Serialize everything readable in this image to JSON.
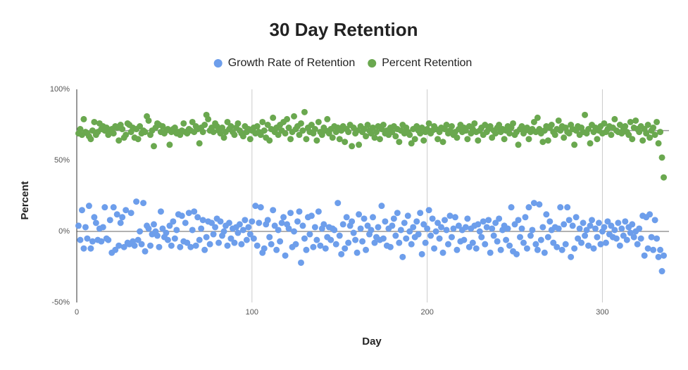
{
  "chart_data": {
    "type": "scatter",
    "title": "30 Day Retention",
    "x_label": "Day",
    "y_label": "Percent",
    "xlim": [
      0,
      338
    ],
    "xticks": [
      0,
      100,
      200,
      300
    ],
    "ylim": [
      -50,
      100
    ],
    "yticks": [
      {
        "value": -50,
        "label": "-50%"
      },
      {
        "value": 0,
        "label": "0%"
      },
      {
        "value": 50,
        "label": "50%"
      },
      {
        "value": 100,
        "label": "100%"
      }
    ],
    "trendline_value": 71,
    "grid": true,
    "legend": "top",
    "x": [
      1,
      2,
      3,
      4,
      5,
      6,
      7,
      8,
      9,
      10,
      11,
      12,
      13,
      14,
      15,
      16,
      17,
      18,
      19,
      20,
      21,
      22,
      23,
      24,
      25,
      26,
      27,
      28,
      29,
      30,
      31,
      32,
      33,
      34,
      35,
      36,
      37,
      38,
      39,
      40,
      41,
      42,
      43,
      44,
      45,
      46,
      47,
      48,
      49,
      50,
      51,
      52,
      53,
      54,
      55,
      56,
      57,
      58,
      59,
      60,
      61,
      62,
      63,
      64,
      65,
      66,
      67,
      68,
      69,
      70,
      71,
      72,
      73,
      74,
      75,
      76,
      77,
      78,
      79,
      80,
      81,
      82,
      83,
      84,
      85,
      86,
      87,
      88,
      89,
      90,
      91,
      92,
      93,
      94,
      95,
      96,
      97,
      98,
      99,
      100,
      101,
      102,
      103,
      104,
      105,
      106,
      107,
      108,
      109,
      110,
      111,
      112,
      113,
      114,
      115,
      116,
      117,
      118,
      119,
      120,
      121,
      122,
      123,
      124,
      125,
      126,
      127,
      128,
      129,
      130,
      131,
      132,
      133,
      134,
      135,
      136,
      137,
      138,
      139,
      140,
      141,
      142,
      143,
      144,
      145,
      146,
      147,
      148,
      149,
      150,
      151,
      152,
      153,
      154,
      155,
      156,
      157,
      158,
      159,
      160,
      161,
      162,
      163,
      164,
      165,
      166,
      167,
      168,
      169,
      170,
      171,
      172,
      173,
      174,
      175,
      176,
      177,
      178,
      179,
      180,
      181,
      182,
      183,
      184,
      185,
      186,
      187,
      188,
      189,
      190,
      191,
      192,
      193,
      194,
      195,
      196,
      197,
      198,
      199,
      200,
      201,
      202,
      203,
      204,
      205,
      206,
      207,
      208,
      209,
      210,
      211,
      212,
      213,
      214,
      215,
      216,
      217,
      218,
      219,
      220,
      221,
      222,
      223,
      224,
      225,
      226,
      227,
      228,
      229,
      230,
      231,
      232,
      233,
      234,
      235,
      236,
      237,
      238,
      239,
      240,
      241,
      242,
      243,
      244,
      245,
      246,
      247,
      248,
      249,
      250,
      251,
      252,
      253,
      254,
      255,
      256,
      257,
      258,
      259,
      260,
      261,
      262,
      263,
      264,
      265,
      266,
      267,
      268,
      269,
      270,
      271,
      272,
      273,
      274,
      275,
      276,
      277,
      278,
      279,
      280,
      281,
      282,
      283,
      284,
      285,
      286,
      287,
      288,
      289,
      290,
      291,
      292,
      293,
      294,
      295,
      296,
      297,
      298,
      299,
      300,
      301,
      302,
      303,
      304,
      305,
      306,
      307,
      308,
      309,
      310,
      311,
      312,
      313,
      314,
      315,
      316,
      317,
      318,
      319,
      320,
      321,
      322,
      323,
      324,
      325,
      326,
      327,
      328,
      329,
      330,
      331,
      332,
      333,
      334,
      335
    ],
    "series": [
      {
        "name": "Growth Rate of Retention",
        "color": "#6d9eeb",
        "values": [
          4,
          -6,
          15,
          -12,
          3,
          -5,
          18,
          -12,
          -7,
          10,
          6,
          -6,
          2,
          -7,
          3,
          17,
          -5,
          -6,
          8,
          -15,
          17,
          -13,
          12,
          -10,
          6,
          10,
          -11,
          15,
          -8,
          -9,
          13,
          -7,
          -10,
          21,
          -6,
          0,
          -9,
          20,
          -14,
          4,
          2,
          -10,
          -2,
          5,
          0,
          -3,
          -11,
          14,
          2,
          -4,
          -1,
          -6,
          4,
          -10,
          7,
          -5,
          1,
          12,
          -11,
          11,
          -7,
          6,
          -8,
          13,
          -11,
          1,
          14,
          -10,
          10,
          -6,
          2,
          8,
          -13,
          -4,
          7,
          -9,
          6,
          -2,
          3,
          9,
          -8,
          7,
          -3,
          0,
          4,
          -10,
          6,
          -5,
          2,
          -8,
          3,
          -1,
          5,
          -9,
          1,
          8,
          -6,
          3,
          -2,
          7,
          -5,
          18,
          -10,
          6,
          17,
          -15,
          -12,
          5,
          8,
          -4,
          -9,
          15,
          4,
          -13,
          1,
          -7,
          6,
          10,
          -17,
          5,
          2,
          13,
          -11,
          0,
          -9,
          7,
          14,
          -22,
          4,
          -5,
          -13,
          10,
          -2,
          11,
          -11,
          3,
          -6,
          14,
          -10,
          2,
          5,
          -12,
          -4,
          3,
          -6,
          2,
          1,
          -9,
          20,
          -3,
          -16,
          5,
          -12,
          10,
          -8,
          4,
          7,
          -1,
          -6,
          -15,
          12,
          2,
          -7,
          9,
          -13,
          4,
          -2,
          1,
          10,
          -8,
          -4,
          3,
          -6,
          18,
          -5,
          7,
          -10,
          2,
          -11,
          4,
          9,
          -3,
          13,
          -8,
          1,
          -18,
          6,
          -5,
          11,
          0,
          -9,
          3,
          -4,
          7,
          -2,
          13,
          -16,
          5,
          -8,
          2,
          15,
          -3,
          9,
          -12,
          0,
          6,
          -5,
          3,
          -15,
          8,
          1,
          -9,
          11,
          -4,
          2,
          10,
          -13,
          4,
          -7,
          1,
          -6,
          3,
          9,
          -11,
          2,
          -8,
          4,
          -12,
          5,
          0,
          -4,
          7,
          -9,
          3,
          8,
          -15,
          2,
          -3,
          6,
          -7,
          9,
          -13,
          1,
          4,
          -6,
          2,
          -10,
          17,
          -14,
          5,
          -16,
          8,
          -4,
          2,
          -8,
          10,
          -12,
          17,
          -3,
          1,
          20,
          -9,
          -13,
          19,
          -6,
          3,
          -15,
          12,
          -4,
          7,
          1,
          -8,
          3,
          -11,
          2,
          17,
          -13,
          5,
          -9,
          17,
          8,
          -18,
          4,
          -12,
          10,
          -5,
          2,
          -8,
          6,
          -3,
          1,
          -10,
          4,
          8,
          -12,
          2,
          -4,
          6,
          -9,
          0,
          3,
          -8,
          7,
          -2,
          4,
          -4,
          1,
          -5,
          6,
          -10,
          2,
          -3,
          7,
          -6,
          3,
          -1,
          5,
          -4,
          0,
          -9,
          2,
          -5,
          11,
          -17,
          10,
          -12,
          12,
          -4,
          -13,
          8,
          -5,
          -18,
          -13,
          -28,
          -17
        ]
      },
      {
        "name": "Percent Retention",
        "color": "#6aa84f",
        "values": [
          69,
          72,
          68,
          79,
          70,
          69,
          67,
          65,
          71,
          77,
          68,
          70,
          76,
          72,
          74,
          71,
          73,
          68,
          70,
          72,
          69,
          74,
          73,
          64,
          75,
          72,
          66,
          68,
          76,
          75,
          70,
          73,
          66,
          72,
          65,
          74,
          69,
          71,
          70,
          81,
          78,
          68,
          71,
          60,
          73,
          76,
          75,
          70,
          74,
          69,
          71,
          72,
          61,
          70,
          72,
          73,
          69,
          70,
          68,
          71,
          76,
          70,
          69,
          72,
          71,
          77,
          70,
          74,
          72,
          62,
          73,
          70,
          75,
          82,
          79,
          71,
          73,
          70,
          76,
          74,
          71,
          69,
          73,
          66,
          70,
          77,
          72,
          74,
          70,
          68,
          73,
          76,
          71,
          69,
          67,
          74,
          70,
          72,
          65,
          71,
          73,
          69,
          74,
          70,
          68,
          77,
          71,
          66,
          75,
          64,
          72,
          80,
          70,
          73,
          68,
          75,
          71,
          77,
          69,
          79,
          73,
          65,
          70,
          81,
          72,
          74,
          68,
          76,
          71,
          84,
          65,
          73,
          70,
          75,
          69,
          72,
          64,
          77,
          70,
          68,
          73,
          71,
          79,
          69,
          72,
          66,
          74,
          70,
          73,
          65,
          71,
          74,
          63,
          72,
          70,
          75,
          60,
          73,
          69,
          71,
          61,
          74,
          70,
          72,
          67,
          75,
          71,
          69,
          73,
          66,
          70,
          74,
          65,
          72,
          75,
          69,
          71,
          68,
          73,
          70,
          74,
          67,
          72,
          63,
          71,
          75,
          69,
          73,
          70,
          68,
          62,
          72,
          65,
          74,
          71,
          69,
          73,
          64,
          70,
          72,
          76,
          69,
          71,
          74,
          72,
          65,
          70,
          73,
          63,
          72,
          75,
          69,
          71,
          74,
          68,
          70,
          66,
          72,
          75,
          70,
          73,
          71,
          65,
          74,
          69,
          72,
          76,
          70,
          64,
          71,
          73,
          68,
          75,
          70,
          72,
          74,
          66,
          71,
          69,
          73,
          75,
          70,
          72,
          65,
          71,
          74,
          69,
          73,
          76,
          68,
          70,
          61,
          72,
          74,
          69,
          71,
          73,
          65,
          70,
          72,
          77,
          70,
          80,
          72,
          69,
          63,
          71,
          74,
          64,
          73,
          75,
          70,
          68,
          72,
          78,
          71,
          74,
          66,
          73,
          70,
          69,
          75,
          72,
          61,
          71,
          74,
          68,
          73,
          70,
          82,
          69,
          72,
          62,
          75,
          70,
          73,
          65,
          71,
          74,
          69,
          76,
          70,
          72,
          74,
          68,
          73,
          79,
          71,
          70,
          75,
          69,
          72,
          74,
          70,
          68,
          77,
          65,
          73,
          78,
          72,
          70,
          74,
          64,
          72,
          69,
          75,
          66,
          71,
          73,
          68,
          77,
          62,
          70,
          52,
          38
        ]
      }
    ]
  }
}
